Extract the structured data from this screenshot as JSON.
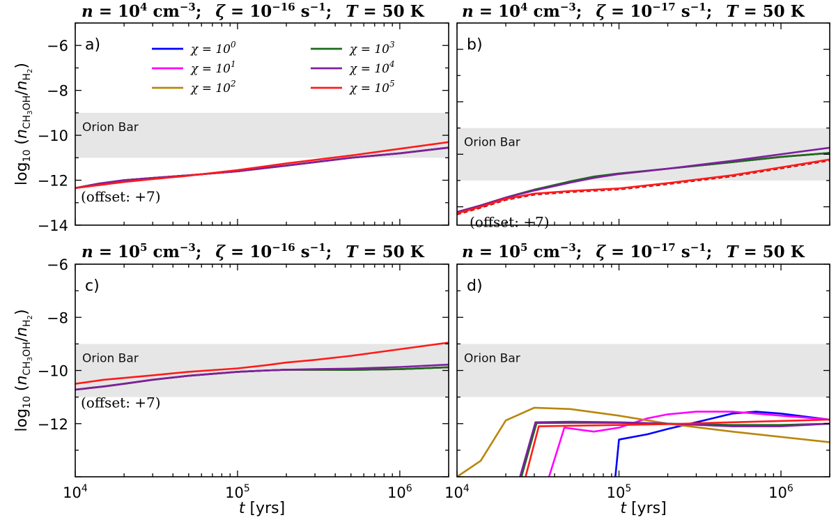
{
  "chart_data": [
    {
      "type": "line",
      "panel": "a)",
      "title": {
        "n_exp": "4",
        "zeta_exp": "−16",
        "T": "50"
      },
      "xlabel": "t [yrs]",
      "ylabel": "log10 (nCH3OH/nH2)",
      "xscale": "log",
      "xlim": [
        10000,
        2000000
      ],
      "ylim": [
        -14,
        -5
      ],
      "yticks": [
        "−6",
        "−8",
        "−10",
        "−12",
        "−14"
      ],
      "band": {
        "label": "Orion Bar",
        "range": [
          -11,
          -9
        ]
      },
      "annotation": "(offset: +7)",
      "series": [
        {
          "name": "χ = 10^0",
          "color": "#0000ff",
          "x": [
            10000,
            14000,
            20000,
            30000,
            50000,
            100000,
            200000,
            500000,
            1000000,
            2000000
          ],
          "y": [
            -12.35,
            -12.15,
            -12.0,
            -11.9,
            -11.78,
            -11.6,
            -11.35,
            -11.0,
            -10.8,
            -10.55
          ]
        },
        {
          "name": "χ = 10^1",
          "color": "#ff00ff",
          "x": [
            10000,
            14000,
            20000,
            30000,
            50000,
            100000,
            200000,
            500000,
            1000000,
            2000000
          ],
          "y": [
            -12.35,
            -12.15,
            -12.0,
            -11.9,
            -11.78,
            -11.6,
            -11.35,
            -11.0,
            -10.8,
            -10.55
          ]
        },
        {
          "name": "χ = 10^2",
          "color": "#b8860b",
          "x": [
            10000,
            14000,
            20000,
            30000,
            50000,
            100000,
            200000,
            500000,
            1000000,
            2000000
          ],
          "y": [
            -12.35,
            -12.15,
            -12.0,
            -11.9,
            -11.78,
            -11.6,
            -11.35,
            -11.0,
            -10.8,
            -10.55
          ]
        },
        {
          "name": "χ = 10^3",
          "color": "#1a6b1a",
          "x": [
            10000,
            14000,
            20000,
            30000,
            50000,
            100000,
            200000,
            500000,
            1000000,
            2000000
          ],
          "y": [
            -12.35,
            -12.15,
            -12.0,
            -11.9,
            -11.78,
            -11.6,
            -11.35,
            -11.0,
            -10.8,
            -10.55
          ]
        },
        {
          "name": "χ = 10^4",
          "color": "#7f1f9f",
          "x": [
            10000,
            14000,
            20000,
            30000,
            50000,
            100000,
            200000,
            500000,
            1000000,
            2000000
          ],
          "y": [
            -12.35,
            -12.15,
            -12.0,
            -11.9,
            -11.78,
            -11.6,
            -11.35,
            -11.0,
            -10.8,
            -10.55
          ]
        },
        {
          "name": "χ = 10^5",
          "color": "#ff1a1a",
          "x": [
            10000,
            14000,
            20000,
            30000,
            50000,
            100000,
            200000,
            500000,
            1000000,
            2000000
          ],
          "y": [
            -12.35,
            -12.22,
            -12.08,
            -11.95,
            -11.8,
            -11.55,
            -11.25,
            -10.9,
            -10.6,
            -10.3
          ]
        }
      ]
    },
    {
      "type": "line",
      "panel": "b)",
      "title": {
        "n_exp": "4",
        "zeta_exp": "−17",
        "T": "50"
      },
      "xlabel": "t [yrs]",
      "ylabel": "",
      "xscale": "log",
      "xlim": [
        10000,
        2000000
      ],
      "ylim": [
        -12.7,
        -5
      ],
      "yticks": [],
      "band": {
        "label": "Orion Bar",
        "range": [
          -11,
          -9
        ]
      },
      "annotation": "(offset: +7)",
      "series": [
        {
          "name": "χ = 10^0",
          "color": "#0000ff",
          "x": [
            10000,
            14000,
            20000,
            30000,
            50000,
            70000,
            100000,
            200000,
            500000,
            1000000,
            2000000
          ],
          "y": [
            -12.2,
            -11.95,
            -11.65,
            -11.35,
            -11.05,
            -10.88,
            -10.75,
            -10.55,
            -10.3,
            -10.1,
            -9.95
          ]
        },
        {
          "name": "χ = 10^1",
          "color": "#ff00ff",
          "x": [
            10000,
            14000,
            20000,
            30000,
            50000,
            70000,
            100000,
            200000,
            500000,
            1000000,
            2000000
          ],
          "y": [
            -12.2,
            -11.95,
            -11.65,
            -11.35,
            -11.05,
            -10.88,
            -10.75,
            -10.55,
            -10.3,
            -10.1,
            -9.95
          ]
        },
        {
          "name": "χ = 10^2",
          "color": "#b8860b",
          "x": [
            10000,
            14000,
            20000,
            30000,
            50000,
            70000,
            100000,
            200000,
            500000,
            1000000,
            2000000
          ],
          "y": [
            -12.2,
            -11.95,
            -11.65,
            -11.35,
            -11.05,
            -10.88,
            -10.75,
            -10.55,
            -10.3,
            -10.1,
            -9.95
          ]
        },
        {
          "name": "χ = 10^3",
          "color": "#1a6b1a",
          "x": [
            10000,
            14000,
            20000,
            30000,
            50000,
            70000,
            100000,
            200000,
            500000,
            1000000,
            2000000
          ],
          "y": [
            -12.2,
            -11.95,
            -11.65,
            -11.35,
            -11.03,
            -10.85,
            -10.73,
            -10.55,
            -10.3,
            -10.1,
            -9.95
          ]
        },
        {
          "name": "χ = 10^4",
          "color": "#7f1f9f",
          "x": [
            10000,
            14000,
            20000,
            30000,
            50000,
            70000,
            100000,
            200000,
            500000,
            1000000,
            2000000
          ],
          "y": [
            -12.2,
            -11.95,
            -11.65,
            -11.38,
            -11.08,
            -10.9,
            -10.75,
            -10.55,
            -10.25,
            -10.0,
            -9.75
          ]
        },
        {
          "name": "χ = 10^5",
          "color": "#ff1a1a",
          "x": [
            10000,
            14000,
            20000,
            30000,
            50000,
            70000,
            100000,
            200000,
            500000,
            1000000,
            2000000
          ],
          "y": [
            -12.25,
            -12.0,
            -11.7,
            -11.5,
            -11.4,
            -11.35,
            -11.3,
            -11.1,
            -10.8,
            -10.5,
            -10.2
          ]
        }
      ]
    },
    {
      "type": "line",
      "panel": "c)",
      "title": {
        "n_exp": "5",
        "zeta_exp": "−16",
        "T": "50"
      },
      "xlabel": "t [yrs]",
      "ylabel": "log10 (nCH3OH/nH2)",
      "xscale": "log",
      "xlim": [
        10000,
        2000000
      ],
      "ylim": [
        -14,
        -6
      ],
      "yticks": [
        "−6",
        "−8",
        "−10",
        "−12"
      ],
      "band": {
        "label": "Orion Bar",
        "range": [
          -11,
          -9
        ]
      },
      "annotation": "(offset: +7)",
      "series": [
        {
          "name": "χ = 10^0",
          "color": "#0000ff",
          "x": [
            10000,
            15000,
            20000,
            30000,
            50000,
            100000,
            150000,
            200000,
            300000,
            500000,
            1000000,
            2000000
          ],
          "y": [
            -10.72,
            -10.6,
            -10.5,
            -10.35,
            -10.2,
            -10.05,
            -10.0,
            -9.97,
            -9.97,
            -9.98,
            -9.95,
            -9.88
          ]
        },
        {
          "name": "χ = 10^1",
          "color": "#ff00ff",
          "x": [
            10000,
            15000,
            20000,
            30000,
            50000,
            100000,
            150000,
            200000,
            300000,
            500000,
            1000000,
            2000000
          ],
          "y": [
            -10.72,
            -10.6,
            -10.5,
            -10.35,
            -10.2,
            -10.05,
            -10.0,
            -9.97,
            -9.97,
            -9.98,
            -9.95,
            -9.88
          ]
        },
        {
          "name": "χ = 10^2",
          "color": "#b8860b",
          "x": [
            10000,
            15000,
            20000,
            30000,
            50000,
            100000,
            150000,
            200000,
            300000,
            500000,
            1000000,
            2000000
          ],
          "y": [
            -10.72,
            -10.6,
            -10.5,
            -10.35,
            -10.2,
            -10.05,
            -10.0,
            -9.97,
            -9.97,
            -9.98,
            -9.95,
            -9.88
          ]
        },
        {
          "name": "χ = 10^3",
          "color": "#1a6b1a",
          "x": [
            10000,
            15000,
            20000,
            30000,
            50000,
            100000,
            150000,
            200000,
            300000,
            500000,
            1000000,
            2000000
          ],
          "y": [
            -10.72,
            -10.6,
            -10.5,
            -10.35,
            -10.2,
            -10.05,
            -10.0,
            -9.97,
            -9.97,
            -9.98,
            -9.95,
            -9.88
          ]
        },
        {
          "name": "χ = 10^4",
          "color": "#7f1f9f",
          "x": [
            10000,
            15000,
            20000,
            30000,
            50000,
            100000,
            150000,
            200000,
            300000,
            500000,
            1000000,
            2000000
          ],
          "y": [
            -10.72,
            -10.6,
            -10.5,
            -10.35,
            -10.2,
            -10.05,
            -10.0,
            -9.97,
            -9.95,
            -9.93,
            -9.87,
            -9.78
          ]
        },
        {
          "name": "χ = 10^5",
          "color": "#ff1a1a",
          "x": [
            10000,
            15000,
            20000,
            30000,
            50000,
            100000,
            150000,
            200000,
            300000,
            500000,
            1000000,
            2000000
          ],
          "y": [
            -10.5,
            -10.35,
            -10.28,
            -10.18,
            -10.05,
            -9.92,
            -9.8,
            -9.7,
            -9.6,
            -9.45,
            -9.2,
            -8.95
          ]
        }
      ]
    },
    {
      "type": "line",
      "panel": "d)",
      "title": {
        "n_exp": "5",
        "zeta_exp": "−17",
        "T": "50"
      },
      "xlabel": "t [yrs]",
      "ylabel": "",
      "xscale": "log",
      "xlim": [
        10000,
        2000000
      ],
      "ylim": [
        -14,
        -6
      ],
      "yticks": [],
      "band": {
        "label": "Orion Bar",
        "range": [
          -11,
          -9
        ]
      },
      "annotation": "",
      "series": [
        {
          "name": "χ = 10^0",
          "color": "#0000ff",
          "x": [
            95000,
            100000,
            150000,
            200000,
            300000,
            500000,
            700000,
            1000000,
            2000000
          ],
          "y": [
            -14.0,
            -12.6,
            -12.4,
            -12.2,
            -11.95,
            -11.62,
            -11.55,
            -11.62,
            -11.85
          ]
        },
        {
          "name": "χ = 10^1",
          "color": "#ff00ff",
          "x": [
            37000,
            46000,
            70000,
            100000,
            150000,
            200000,
            300000,
            500000,
            700000,
            1000000,
            2000000
          ],
          "y": [
            -14.0,
            -12.15,
            -12.3,
            -12.15,
            -11.8,
            -11.65,
            -11.55,
            -11.55,
            -11.62,
            -11.7,
            -11.85
          ]
        },
        {
          "name": "χ = 10^2",
          "color": "#b8860b",
          "x": [
            10000,
            14000,
            20000,
            30000,
            50000,
            100000,
            200000,
            500000,
            1000000,
            2000000
          ],
          "y": [
            -14.0,
            -13.4,
            -11.88,
            -11.4,
            -11.45,
            -11.7,
            -12.0,
            -12.3,
            -12.5,
            -12.7
          ]
        },
        {
          "name": "χ = 10^3",
          "color": "#1a6b1a",
          "x": [
            25000,
            31000,
            50000,
            100000,
            200000,
            500000,
            1000000,
            2000000
          ],
          "y": [
            -14.0,
            -11.98,
            -11.97,
            -11.97,
            -12.0,
            -12.05,
            -12.05,
            -12.0
          ]
        },
        {
          "name": "χ = 10^4",
          "color": "#7f1f9f",
          "x": [
            24500,
            30500,
            50000,
            100000,
            200000,
            500000,
            1000000,
            2000000
          ],
          "y": [
            -14.0,
            -11.95,
            -11.93,
            -11.95,
            -12.0,
            -12.1,
            -12.1,
            -12.0
          ]
        },
        {
          "name": "χ = 10^5",
          "color": "#ff1a1a",
          "x": [
            26500,
            32000,
            50000,
            100000,
            200000,
            500000,
            1000000,
            2000000
          ],
          "y": [
            -14.0,
            -12.1,
            -12.08,
            -12.05,
            -12.02,
            -11.95,
            -11.9,
            -11.85
          ]
        }
      ]
    }
  ],
  "legend": {
    "placement": "top (panel a)",
    "entries": [
      {
        "base": "χ = 10",
        "exp": "0",
        "color": "#0000ff"
      },
      {
        "base": "χ = 10",
        "exp": "3",
        "color": "#1a6b1a"
      },
      {
        "base": "χ = 10",
        "exp": "1",
        "color": "#ff00ff"
      },
      {
        "base": "χ = 10",
        "exp": "4",
        "color": "#7f1f9f"
      },
      {
        "base": "χ = 10",
        "exp": "2",
        "color": "#b8860b"
      },
      {
        "base": "χ = 10",
        "exp": "5",
        "color": "#ff1a1a"
      }
    ]
  },
  "text": {
    "n": "n",
    "eq": " = 10",
    "cm": " cm",
    "cm_exp": "−3",
    "semi": ";",
    "zeta": "ζ",
    "s": " s",
    "s_exp": "−1",
    "T": "T",
    "K": " K",
    "xtick_base": "10",
    "xtick_exps": [
      "4",
      "5",
      "6"
    ],
    "xlabel_t": "t",
    "xlabel_unit": " [yrs]",
    "ylabel_log": "log",
    "ylabel_sub10": "10",
    "ylabel_open": " (",
    "ylabel_n": "n",
    "ylabel_sub1": "CH",
    "ylabel_sub1b": "3",
    "ylabel_sub1c": "OH",
    "ylabel_slash": "/",
    "ylabel_sub2": "H",
    "ylabel_sub2b": "2",
    "ylabel_close": ")"
  }
}
